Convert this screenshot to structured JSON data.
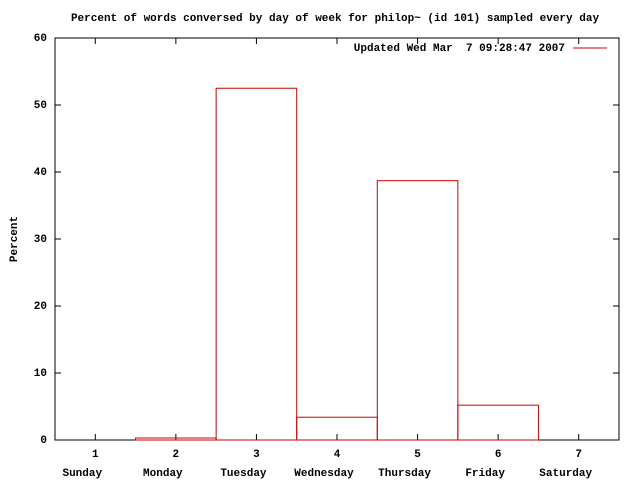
{
  "chart_data": {
    "type": "bar",
    "title": "Percent of words conversed by day of week for philop~ (id 101) sampled every day",
    "y_label": "Percent",
    "x": [
      1,
      2,
      3,
      4,
      5,
      6,
      7
    ],
    "categories": [
      "Sunday",
      "Monday",
      "Tuesday",
      "Wednesday",
      "Thursday",
      "Friday",
      "Saturday"
    ],
    "series": [
      {
        "name": "Updated Wed Mar  7 09:28:47 2007",
        "color": "#cc0000",
        "values": [
          0,
          0.3,
          52.5,
          3.4,
          38.7,
          5.2,
          0
        ]
      }
    ],
    "xlim": [
      0.5,
      7.5
    ],
    "xticks": [
      1,
      2,
      3,
      4,
      5,
      6,
      7
    ],
    "ylim": [
      0,
      60
    ],
    "yticks": [
      0,
      10,
      20,
      30,
      40,
      50,
      60
    ],
    "legend": "top-right"
  }
}
